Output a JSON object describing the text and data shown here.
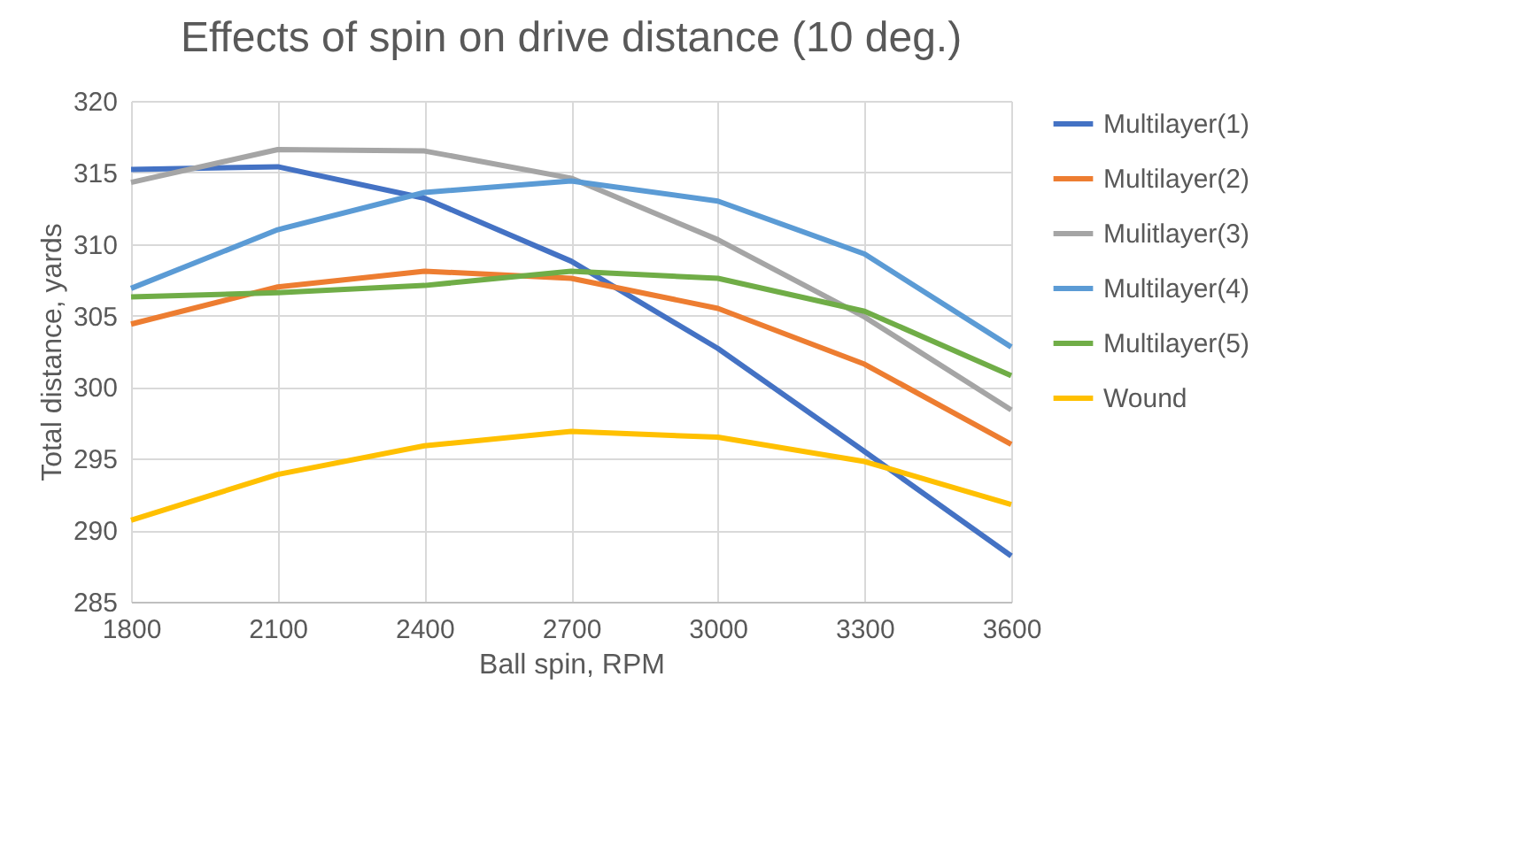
{
  "chart_data": {
    "type": "line",
    "title": "Effects of spin on drive distance (10 deg.)",
    "xlabel": "Ball spin, RPM",
    "ylabel": "Total distance, yards",
    "x": [
      1800,
      2100,
      2400,
      2700,
      3000,
      3300,
      3600
    ],
    "series": [
      {
        "name": "Multilayer(1)",
        "color": "#4472c4",
        "values": [
          315.2,
          315.4,
          313.2,
          308.8,
          302.7,
          295.5,
          288.2
        ]
      },
      {
        "name": "Multilayer(2)",
        "color": "#ed7d31",
        "values": [
          304.4,
          307.0,
          308.1,
          307.6,
          305.5,
          301.6,
          296.0
        ]
      },
      {
        "name": "Mulitlayer(3)",
        "color": "#a5a5a5",
        "values": [
          314.3,
          316.6,
          316.5,
          314.6,
          310.3,
          304.9,
          298.4
        ]
      },
      {
        "name": "Multilayer(4)",
        "color": "#5b9bd5",
        "values": [
          306.9,
          311.0,
          313.6,
          314.4,
          313.0,
          309.3,
          302.8
        ]
      },
      {
        "name": "Multilayer(5)",
        "color": "#70ad47",
        "values": [
          306.3,
          306.6,
          307.1,
          308.1,
          307.6,
          305.3,
          300.8
        ]
      },
      {
        "name": "Wound",
        "color": "#ffc000",
        "values": [
          290.7,
          293.9,
          295.9,
          296.9,
          296.5,
          294.8,
          291.8
        ]
      }
    ],
    "xlim": [
      1800,
      3600
    ],
    "xticks": [
      1800,
      2100,
      2400,
      2700,
      3000,
      3300,
      3600
    ],
    "ylim": [
      285,
      320
    ],
    "yticks": [
      285,
      290,
      295,
      300,
      305,
      310,
      315,
      320
    ],
    "grid": true,
    "legend": "right",
    "marker": "none",
    "line_style": "solid"
  }
}
